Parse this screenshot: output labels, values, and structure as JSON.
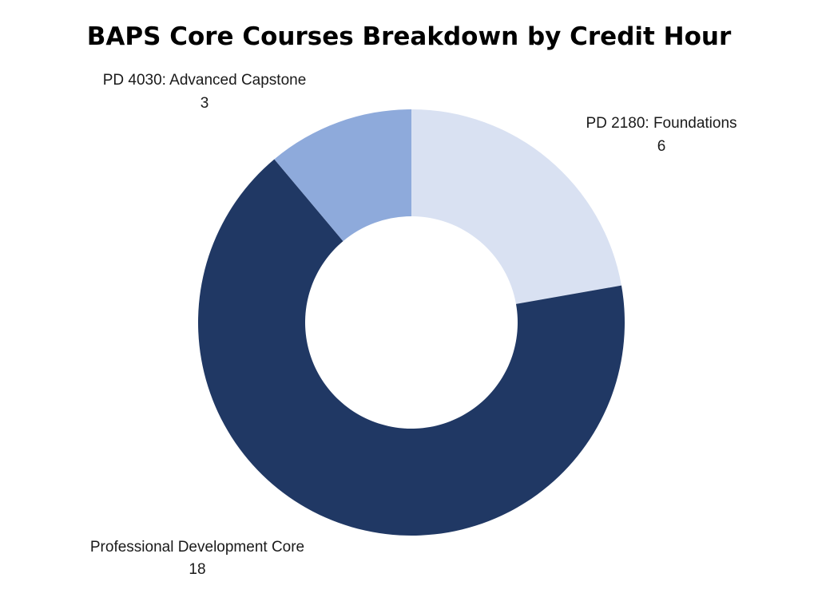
{
  "chart_data": {
    "type": "pie",
    "donut": true,
    "title": "BAPS Core Courses Breakdown by Credit Hour",
    "slices": [
      {
        "label": "PD 2180: Foundations",
        "value": 6,
        "color": "#d9e1f2"
      },
      {
        "label": "Professional Development Core",
        "value": 18,
        "color": "#203864"
      },
      {
        "label": "PD 4030: Advanced Capstone",
        "value": 3,
        "color": "#8eaadb"
      }
    ],
    "start": "top",
    "direction": "clockwise",
    "legend": "none",
    "data_labels": "outside, label with value below"
  }
}
